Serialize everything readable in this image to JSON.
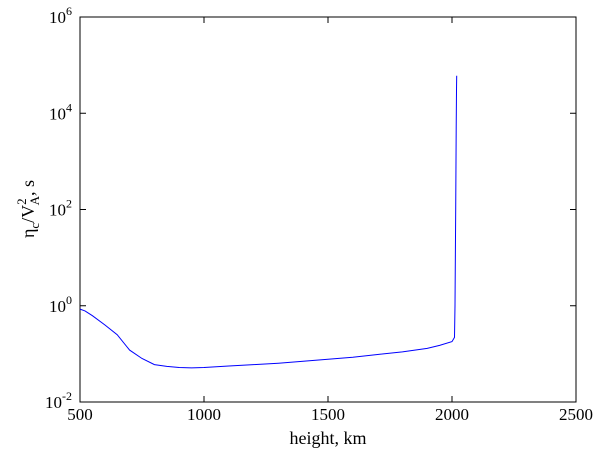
{
  "chart_data": {
    "type": "line",
    "title": "",
    "xlabel": "height, km",
    "ylabel": {
      "eta": "η",
      "sub_c": "c",
      "slash_v": "/V",
      "sup_2": "2",
      "sub_a": "A",
      "unit": ", s"
    },
    "xlim": [
      500,
      2500
    ],
    "ylim": [
      0.01,
      1000000
    ],
    "yscale": "log",
    "grid": false,
    "legend": "none",
    "xticks": [
      500,
      1000,
      1500,
      2000,
      2500
    ],
    "xtick_labels": [
      "500",
      "1000",
      "1500",
      "2000",
      "2500"
    ],
    "yticks": [
      0.01,
      1,
      100,
      10000,
      1000000
    ],
    "ytick_labels": [
      {
        "base": "10",
        "exp": "-2"
      },
      {
        "base": "10",
        "exp": "0"
      },
      {
        "base": "10",
        "exp": "2"
      },
      {
        "base": "10",
        "exp": "4"
      },
      {
        "base": "10",
        "exp": "6"
      }
    ],
    "series": [
      {
        "color": "#0000ff",
        "x": [
          500,
          520,
          550,
          600,
          650,
          700,
          750,
          800,
          850,
          900,
          950,
          1000,
          1100,
          1200,
          1300,
          1400,
          1500,
          1600,
          1700,
          1800,
          1900,
          1950,
          2000,
          2010,
          2012,
          2015,
          2017,
          2018,
          2019
        ],
        "y": [
          0.85,
          0.78,
          0.62,
          0.4,
          0.25,
          0.12,
          0.08,
          0.06,
          0.055,
          0.052,
          0.051,
          0.052,
          0.056,
          0.06,
          0.064,
          0.07,
          0.077,
          0.085,
          0.097,
          0.11,
          0.13,
          0.15,
          0.18,
          0.22,
          1.0,
          100,
          5000,
          30000,
          60000
        ]
      }
    ]
  }
}
